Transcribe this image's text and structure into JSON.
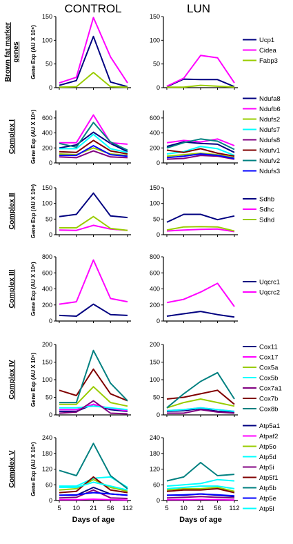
{
  "columns": [
    "CONTROL",
    "LUN"
  ],
  "x_axis": {
    "categories": [
      "5",
      "10",
      "21",
      "56",
      "112"
    ],
    "label": "Days of age"
  },
  "chart_data": [
    {
      "type": "line",
      "row_label_lines": [
        "Brown fat marker",
        "genes"
      ],
      "ylabel": "Gene Exp (AU X 10⁶)",
      "ylim": [
        0,
        150
      ],
      "yticks": [
        0,
        50,
        100,
        150
      ],
      "series": [
        {
          "name": "Ucp1",
          "color": "#000080",
          "control": [
            5,
            15,
            108,
            12,
            2
          ],
          "lun": [
            2,
            18,
            17,
            17,
            2
          ]
        },
        {
          "name": "Cidea",
          "color": "#ff00ff",
          "control": [
            10,
            22,
            148,
            65,
            10
          ],
          "lun": [
            3,
            20,
            68,
            63,
            10
          ]
        },
        {
          "name": "Fabp3",
          "color": "#99cc00",
          "control": [
            1,
            2,
            32,
            2,
            1
          ],
          "lun": [
            1,
            1,
            5,
            3,
            1
          ]
        }
      ]
    },
    {
      "type": "line",
      "row_label_lines": [
        "Complex I"
      ],
      "ylabel": "Gene Exp (AU X 10⁵)",
      "ylim": [
        0,
        700
      ],
      "yticks": [
        0,
        200,
        400,
        600
      ],
      "series": [
        {
          "name": "Ndufa8",
          "color": "#000080",
          "control": [
            200,
            240,
            410,
            260,
            150
          ],
          "lun": [
            220,
            280,
            260,
            250,
            140
          ]
        },
        {
          "name": "Ndufb6",
          "color": "#ff00ff",
          "control": [
            270,
            270,
            640,
            270,
            250
          ],
          "lun": [
            270,
            300,
            280,
            320,
            230
          ]
        },
        {
          "name": "Ndufs2",
          "color": "#99cc00",
          "control": [
            120,
            110,
            200,
            120,
            100
          ],
          "lun": [
            90,
            110,
            130,
            110,
            70
          ]
        },
        {
          "name": "Ndufs7",
          "color": "#00ffff",
          "control": [
            190,
            190,
            380,
            190,
            140
          ],
          "lun": [
            120,
            150,
            220,
            190,
            100
          ]
        },
        {
          "name": "Ndufs8",
          "color": "#800080",
          "control": [
            80,
            70,
            160,
            80,
            70
          ],
          "lun": [
            50,
            60,
            100,
            90,
            50
          ]
        },
        {
          "name": "Ndufv1",
          "color": "#800000",
          "control": [
            150,
            140,
            300,
            160,
            120
          ],
          "lun": [
            170,
            140,
            190,
            130,
            90
          ]
        },
        {
          "name": "Ndufv2",
          "color": "#008080",
          "control": [
            260,
            210,
            540,
            280,
            170
          ],
          "lun": [
            200,
            270,
            320,
            290,
            180
          ]
        },
        {
          "name": "Ndufs3",
          "color": "#0000ff",
          "control": [
            100,
            100,
            230,
            110,
            90
          ],
          "lun": [
            70,
            90,
            120,
            100,
            60
          ]
        }
      ]
    },
    {
      "type": "line",
      "row_label_lines": [
        "Complex II"
      ],
      "ylabel": "Gene Exp (AU X 10⁶)",
      "ylim": [
        0,
        150
      ],
      "yticks": [
        0,
        50,
        100,
        150
      ],
      "series": [
        {
          "name": "Sdhb",
          "color": "#000080",
          "control": [
            58,
            65,
            133,
            60,
            55
          ],
          "lun": [
            40,
            65,
            65,
            48,
            60
          ]
        },
        {
          "name": "Sdhc",
          "color": "#ff00ff",
          "control": [
            15,
            14,
            30,
            18,
            14
          ],
          "lun": [
            12,
            15,
            17,
            18,
            10
          ]
        },
        {
          "name": "Sdhd",
          "color": "#99cc00",
          "control": [
            22,
            22,
            58,
            20,
            14
          ],
          "lun": [
            15,
            25,
            26,
            25,
            12
          ]
        }
      ]
    },
    {
      "type": "line",
      "row_label_lines": [
        "Complex III"
      ],
      "ylabel": "Gene Exp (AU X 10⁵)",
      "ylim": [
        0,
        800
      ],
      "yticks": [
        0,
        200,
        400,
        600,
        800
      ],
      "series": [
        {
          "name": "Uqcrc1",
          "color": "#000080",
          "control": [
            70,
            60,
            210,
            80,
            70
          ],
          "lun": [
            60,
            90,
            120,
            80,
            50
          ]
        },
        {
          "name": "Uqcrc2",
          "color": "#ff00ff",
          "control": [
            210,
            240,
            760,
            280,
            240
          ],
          "lun": [
            230,
            270,
            360,
            470,
            180
          ]
        }
      ]
    },
    {
      "type": "line",
      "row_label_lines": [
        "Complex IV"
      ],
      "ylabel": "Gene Exp (AU X 10⁵)",
      "ylim": [
        0,
        200
      ],
      "yticks": [
        0,
        50,
        100,
        150,
        200
      ],
      "series": [
        {
          "name": "Cox11",
          "color": "#000080",
          "control": [
            10,
            10,
            30,
            15,
            10
          ],
          "lun": [
            10,
            12,
            18,
            10,
            8
          ]
        },
        {
          "name": "Cox17",
          "color": "#ff00ff",
          "control": [
            15,
            15,
            30,
            18,
            12
          ],
          "lun": [
            12,
            15,
            20,
            15,
            10
          ]
        },
        {
          "name": "Cox5a",
          "color": "#99cc00",
          "control": [
            30,
            30,
            80,
            35,
            25
          ],
          "lun": [
            20,
            35,
            45,
            35,
            25
          ]
        },
        {
          "name": "Cox5b",
          "color": "#00ffff",
          "control": [
            20,
            20,
            25,
            20,
            15
          ],
          "lun": [
            12,
            15,
            20,
            15,
            10
          ]
        },
        {
          "name": "Cox7a1",
          "color": "#800080",
          "control": [
            5,
            8,
            40,
            5,
            3
          ],
          "lun": [
            5,
            5,
            15,
            8,
            5
          ]
        },
        {
          "name": "Cox7b",
          "color": "#800000",
          "control": [
            70,
            55,
            130,
            60,
            40
          ],
          "lun": [
            45,
            50,
            60,
            70,
            30
          ]
        },
        {
          "name": "Cox8b",
          "color": "#008080",
          "control": [
            35,
            35,
            183,
            90,
            40
          ],
          "lun": [
            20,
            60,
            95,
            120,
            45
          ]
        }
      ]
    },
    {
      "type": "line",
      "row_label_lines": [
        "Complex V"
      ],
      "ylabel": "Gene Exp (AU X 10⁶)",
      "ylim": [
        0,
        240
      ],
      "yticks": [
        0,
        60,
        120,
        180,
        240
      ],
      "series": [
        {
          "name": "Atp5a1",
          "color": "#000080",
          "control": [
            20,
            20,
            50,
            25,
            20
          ],
          "lun": [
            20,
            20,
            25,
            20,
            15
          ]
        },
        {
          "name": "Atpaf2",
          "color": "#ff00ff",
          "control": [
            3,
            3,
            5,
            3,
            2
          ],
          "lun": [
            3,
            3,
            4,
            3,
            2
          ]
        },
        {
          "name": "Atp5o",
          "color": "#99cc00",
          "control": [
            40,
            45,
            80,
            50,
            35
          ],
          "lun": [
            40,
            45,
            45,
            50,
            35
          ]
        },
        {
          "name": "Atp5d",
          "color": "#00ffff",
          "control": [
            55,
            55,
            85,
            90,
            50
          ],
          "lun": [
            55,
            60,
            65,
            80,
            75
          ]
        },
        {
          "name": "Atp5i",
          "color": "#800080",
          "control": [
            10,
            12,
            40,
            10,
            8
          ],
          "lun": [
            10,
            12,
            15,
            12,
            10
          ]
        },
        {
          "name": "Atp5f1",
          "color": "#800000",
          "control": [
            30,
            35,
            90,
            40,
            30
          ],
          "lun": [
            35,
            40,
            40,
            45,
            30
          ]
        },
        {
          "name": "Atp5b",
          "color": "#008080",
          "control": [
            115,
            95,
            218,
            95,
            45
          ],
          "lun": [
            75,
            90,
            145,
            95,
            100
          ]
        },
        {
          "name": "Atp5e",
          "color": "#0000ff",
          "control": [
            20,
            22,
            30,
            25,
            20
          ],
          "lun": [
            20,
            22,
            25,
            22,
            18
          ]
        },
        {
          "name": "Atp5l",
          "color": "#00ffff",
          "control": [
            50,
            50,
            70,
            55,
            40
          ],
          "lun": [
            45,
            50,
            55,
            55,
            45
          ]
        }
      ]
    }
  ]
}
